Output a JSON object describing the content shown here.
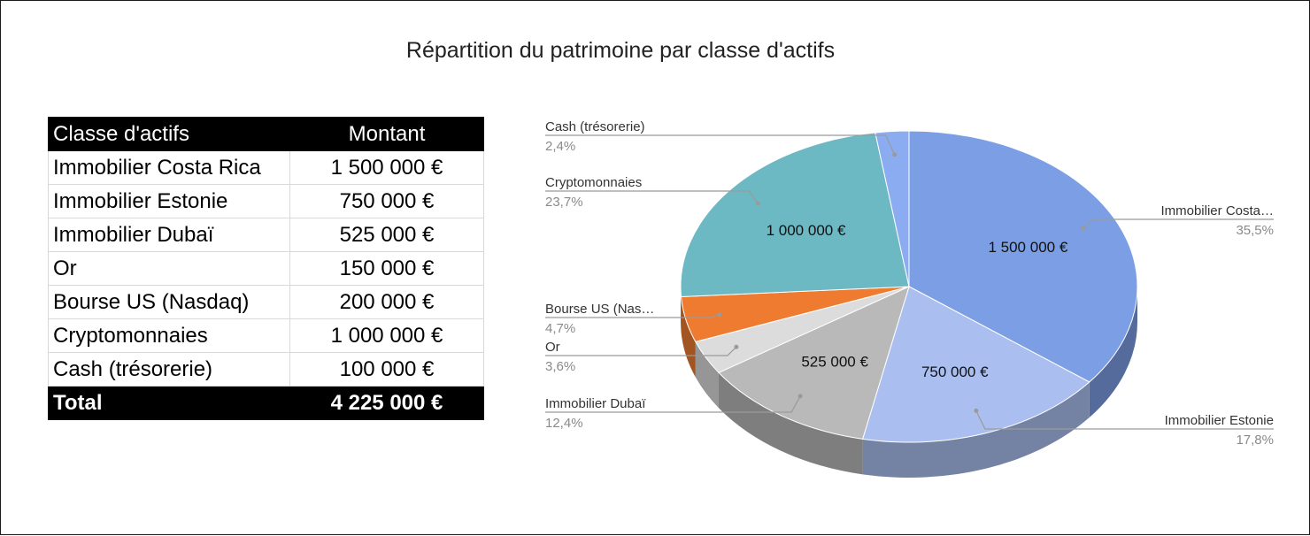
{
  "title": "Répartition du patrimoine par classe d'actifs",
  "table": {
    "headers": [
      "Classe d'actifs",
      "Montant"
    ],
    "rows": [
      {
        "label": "Immobilier Costa Rica",
        "amount": "1 500 000 €"
      },
      {
        "label": "Immobilier Estonie",
        "amount": "750 000 €"
      },
      {
        "label": "Immobilier Dubaï",
        "amount": "525 000 €"
      },
      {
        "label": "Or",
        "amount": "150 000 €"
      },
      {
        "label": "Bourse US (Nasdaq)",
        "amount": "200 000 €"
      },
      {
        "label": "Cryptomonnaies",
        "amount": "1 000 000 €"
      },
      {
        "label": "Cash (trésorerie)",
        "amount": "100 000 €"
      }
    ],
    "total_label": "Total",
    "total_amount": "4 225 000 €"
  },
  "chart_data": {
    "type": "pie",
    "variant": "3d",
    "title": "Répartition du patrimoine par classe d'actifs",
    "slices": [
      {
        "name": "Immobilier Costa Rica",
        "legend": "Immobilier Costa…",
        "value": 1500000,
        "percent": "35,5%",
        "inside_label": "1 500 000 €",
        "color": "#7b9ee4",
        "side": "right"
      },
      {
        "name": "Immobilier Estonie",
        "legend": "Immobilier Estonie",
        "value": 750000,
        "percent": "17,8%",
        "inside_label": "750 000 €",
        "color": "#aabff0",
        "side": "right"
      },
      {
        "name": "Immobilier Dubaï",
        "legend": "Immobilier Dubaï",
        "value": 525000,
        "percent": "12,4%",
        "inside_label": "525 000 €",
        "color": "#b9b9b9",
        "side": "left"
      },
      {
        "name": "Or",
        "legend": "Or",
        "value": 150000,
        "percent": "3,6%",
        "inside_label": "",
        "color": "#dcdcdc",
        "side": "left"
      },
      {
        "name": "Bourse US (Nasdaq)",
        "legend": "Bourse US (Nas…",
        "value": 200000,
        "percent": "4,7%",
        "inside_label": "",
        "color": "#ee7b30",
        "side": "left"
      },
      {
        "name": "Cryptomonnaies",
        "legend": "Cryptomonnaies",
        "value": 1000000,
        "percent": "23,7%",
        "inside_label": "1 000 000 €",
        "color": "#6cb8c3",
        "side": "left"
      },
      {
        "name": "Cash (trésorerie)",
        "legend": "Cash (trésorerie)",
        "value": 100000,
        "percent": "2,4%",
        "inside_label": "",
        "color": "#8cacf2",
        "side": "left"
      }
    ],
    "legend_placement": "labels"
  }
}
